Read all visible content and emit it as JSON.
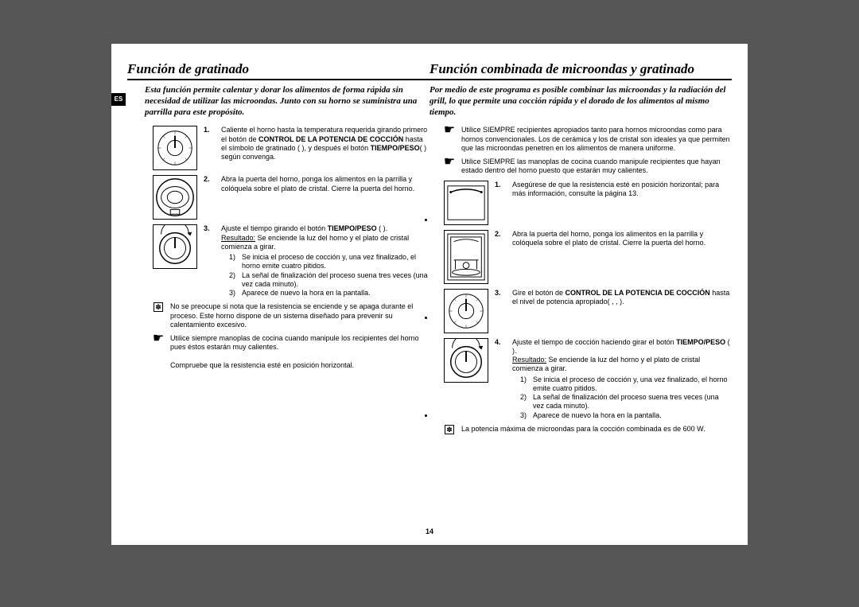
{
  "page_number": "14",
  "es_tag": "ES",
  "left": {
    "heading": "Función de gratinado",
    "intro": "Esta función permite calentar y dorar los alimentos de forma rápida sin necesidad de utilizar las microondas. Junto con su horno se suministra una parrilla para este propósito.",
    "step1_num": "1.",
    "step1": "Caliente el horno hasta la temperatura requerida girando primero el botón de ",
    "step1b": "CONTROL DE LA POTENCIA DE COCCIÓN",
    "step1c": " hasta el símbolo de gratinado (  ), y después el botón ",
    "step1d": "TIEMPO/PESO",
    "step1e": "(  ) según convenga.",
    "step2_num": "2.",
    "step2": "Abra la puerta del horno, ponga los alimentos en la parrilla y colóquela sobre el plato de cristal. Cierre la puerta del horno.",
    "step3_num": "3.",
    "step3a": "Ajuste el tiempo girando el botón ",
    "step3b": "TIEMPO/PESO",
    "step3c": " (  ).",
    "step3_res_label": "Resultado:",
    "step3_res": "Se enciende la luz del horno y el plato de cristal comienza a girar.",
    "step3_sub1": "Se inicia el proceso de cocción y, una vez finalizado, el horno emite cuatro pitidos.",
    "step3_sub2": "La señal de finalización del proceso suena tres veces (una vez cada minuto).",
    "step3_sub3": "Aparece de nuevo la hora en la pantalla.",
    "note1": "No se preocupe si nota que la resistencia se enciende y se apaga durante el proceso. Este horno dispone de un sistema diseñado para prevenir su calentamiento excesivo.",
    "note2a": "Utilice siempre manoplas de cocina cuando manipule los recipientes del horno pues éstos estarán muy calientes.",
    "note2b": "Compruebe que la resistencia esté en posición horizontal."
  },
  "right": {
    "heading": "Función combinada de microondas y gratinado",
    "intro": "Por medio de este programa es posible combinar las microondas y la radiación del grill, lo que permite una cocción rápida y el dorado de los alimentos al mismo tiempo.",
    "note1": "Utilice SIEMPRE recipientes apropiados tanto para hornos microondas como para hornos convencionales. Los de cerámica y los de cristal son ideales ya que permiten que las microondas penetren en los alimentos de manera uniforme.",
    "note2": "Utilice SIEMPRE las manoplas de cocina cuando manipule recipientes que hayan estado dentro del horno puesto que estarán muy calientes.",
    "step1_num": "1.",
    "step1": "Asegúrese de que la resistencia esté en posición horizontal; para más información, consulte la página 13.",
    "step2_num": "2.",
    "step2": "Abra la puerta del horno, ponga los alimentos en la parrilla y colóquela sobre el plato de cristal. Cierre la puerta del horno.",
    "step3_num": "3.",
    "step3a": "Gire el botón de ",
    "step3b": "CONTROL DE LA POTENCIA DE COCCIÓN",
    "step3c": " hasta el nivel de potencia apropiado(  ,  ,  ).",
    "step4_num": "4.",
    "step4a": "Ajuste el tiempo de cocción haciendo girar el botón ",
    "step4b": "TIEMPO/PESO",
    "step4c": " (  ).",
    "step4_res_label": "Resultado:",
    "step4_res": "Se enciende la luz del horno y el plato de cristal comienza a girar.",
    "step4_sub1": "Se inicia el proceso de cocción y, una vez finalizado, el horno emite cuatro pitidos.",
    "step4_sub2": "La señal de finalización del proceso suena tres veces (una vez cada minuto).",
    "step4_sub3": "Aparece de nuevo la hora en la pantalla.",
    "note3": "La potencia máxima de microondas para la cocción combinada es de 600 W."
  },
  "icons": {
    "dial": "<svg viewBox='0 0 56 56'><circle cx='28' cy='28' r='22' fill='none' stroke='#000' stroke-width='1'/><circle cx='28' cy='28' r='10' fill='none' stroke='#000' stroke-width='1'/><g stroke='#000' stroke-width='0.5'><line x1='28' y1='6' x2='28' y2='10'/><line x1='28' y1='46' x2='28' y2='50'/><line x1='6' y1='28' x2='10' y2='28'/><line x1='46' y1='28' x2='50' y2='28'/><line x1='12' y1='12' x2='15' y2='15'/><line x1='41' y1='41' x2='44' y2='44'/><line x1='44' y1='12' x2='41' y2='15'/><line x1='12' y1='44' x2='15' y2='41'/></g><line x1='28' y1='28' x2='28' y2='12' stroke='#000' stroke-width='2'/></svg>",
    "front": "<svg viewBox='0 0 56 56'><circle cx='28' cy='28' r='24' fill='none' stroke='#000' stroke-width='1.5'/><ellipse cx='28' cy='28' rx='18' ry='14' fill='none' stroke='#000' stroke-width='1'/><ellipse cx='28' cy='28' rx='10' ry='8' fill='none' stroke='#000' stroke-width='1'/><rect x='22' y='44' width='12' height='6' fill='none' stroke='#000' stroke-width='1'/></svg>",
    "knob": "<svg viewBox='0 0 56 56'><circle cx='28' cy='30' r='20' fill='none' stroke='#000' stroke-width='1.5'/><circle cx='28' cy='30' r='14' fill='none' stroke='#000' stroke-width='1'/><line x1='28' y1='16' x2='28' y2='30' stroke='#000' stroke-width='2'/><path d='M 10 12 A 18 18 0 0 1 46 12' fill='none' stroke='#000' stroke-width='1'/><polygon points='44,10 48,14 50,9' fill='#000'/></svg>",
    "grillflat": "<svg viewBox='0 0 56 56'><rect x='4' y='6' width='48' height='44' fill='none' stroke='#000' stroke-width='1'/><path d='M 8 14 C 20 9 36 9 48 14' fill='none' stroke='#000' stroke-width='1.5'/><circle cx='8' cy='14' r='1.5' fill='#000'/><circle cx='48' cy='14' r='1.5' fill='#000'/></svg>",
    "oven": "<svg viewBox='0 0 56 68'><rect x='4' y='4' width='48' height='60' fill='none' stroke='#000' stroke-width='1'/><rect x='8' y='8' width='40' height='52' fill='none' stroke='#000' stroke-width='1'/><path d='M 12 14 C 22 10 34 10 44 14' fill='none' stroke='#000' stroke-width='1'/><line x1='12' y1='38' x2='44' y2='38' stroke='#000' stroke-width='1'/><line x1='14' y1='38' x2='14' y2='50' stroke='#000' stroke-width='1'/><line x1='42' y1='38' x2='42' y2='50' stroke='#000' stroke-width='1'/><circle cx='28' cy='45' r='4' fill='none' stroke='#000' stroke-width='1'/><ellipse cx='28' cy='54' rx='18' ry='4' fill='none' stroke='#000' stroke-width='1'/></svg>"
  }
}
